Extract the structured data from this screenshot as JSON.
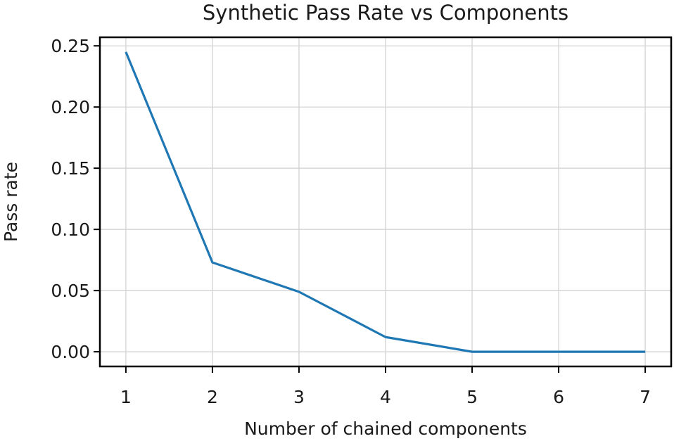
{
  "chart_data": {
    "type": "line",
    "title": "Synthetic Pass Rate vs Components",
    "xlabel": "Number of chained components",
    "ylabel": "Pass rate",
    "x": [
      1,
      2,
      3,
      4,
      5,
      6,
      7
    ],
    "x_ticks": [
      "1",
      "2",
      "3",
      "4",
      "5",
      "6",
      "7"
    ],
    "y_ticks": [
      "0.00",
      "0.05",
      "0.10",
      "0.15",
      "0.20",
      "0.25"
    ],
    "xlim": [
      0.7,
      7.3
    ],
    "ylim": [
      -0.012,
      0.257
    ],
    "grid": true,
    "series": [
      {
        "values": [
          0.245,
          0.073,
          0.049,
          0.012,
          0.0,
          0.0,
          0.0
        ],
        "color": "#1f77b4"
      }
    ]
  }
}
